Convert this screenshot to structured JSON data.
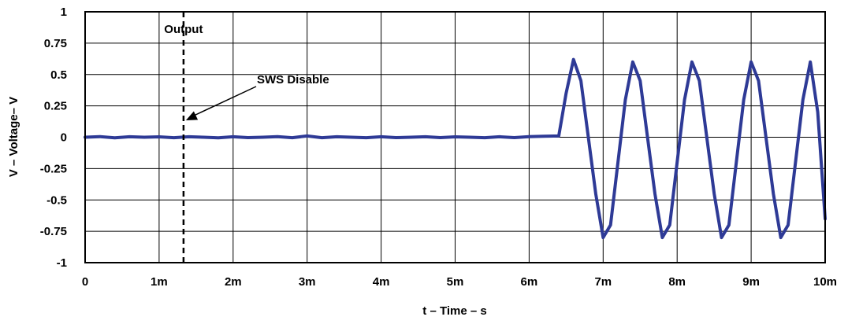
{
  "chart_data": {
    "type": "line",
    "title": "",
    "xlabel": "t – Time – s",
    "ylabel": "V – Voltage– V",
    "xlim": [
      0,
      0.01
    ],
    "ylim": [
      -1,
      1
    ],
    "grid": true,
    "x_ticks": [
      {
        "value": 0,
        "label": "0"
      },
      {
        "value": 0.001,
        "label": "1m"
      },
      {
        "value": 0.002,
        "label": "2m"
      },
      {
        "value": 0.003,
        "label": "3m"
      },
      {
        "value": 0.004,
        "label": "4m"
      },
      {
        "value": 0.005,
        "label": "5m"
      },
      {
        "value": 0.006,
        "label": "6m"
      },
      {
        "value": 0.007,
        "label": "7m"
      },
      {
        "value": 0.008,
        "label": "8m"
      },
      {
        "value": 0.009,
        "label": "9m"
      },
      {
        "value": 0.01,
        "label": "10m"
      }
    ],
    "y_ticks": [
      {
        "value": 1,
        "label": "1"
      },
      {
        "value": 0.75,
        "label": "0.75"
      },
      {
        "value": 0.5,
        "label": "0.5"
      },
      {
        "value": 0.25,
        "label": "0.25"
      },
      {
        "value": 0,
        "label": "0"
      },
      {
        "value": -0.25,
        "label": "-0.25"
      },
      {
        "value": -0.5,
        "label": "-0.5"
      },
      {
        "value": -0.75,
        "label": "-0.75"
      },
      {
        "value": -1,
        "label": "-1"
      }
    ],
    "series": [
      {
        "color": "#2e3a96",
        "x": [
          0,
          0.0002,
          0.0004,
          0.0006,
          0.0008,
          0.001,
          0.0012,
          0.0014,
          0.0016,
          0.0018,
          0.002,
          0.0022,
          0.0024,
          0.0026,
          0.0028,
          0.003,
          0.0032,
          0.0034,
          0.0036,
          0.0038,
          0.004,
          0.0042,
          0.0044,
          0.0046,
          0.0048,
          0.005,
          0.0052,
          0.0054,
          0.0056,
          0.0058,
          0.006,
          0.0062,
          0.0064,
          0.0065,
          0.0066,
          0.0067,
          0.0068,
          0.0069,
          0.007,
          0.0071,
          0.0072,
          0.0073,
          0.0074,
          0.0075,
          0.0076,
          0.0077,
          0.0078,
          0.0079,
          0.008,
          0.0081,
          0.0082,
          0.0083,
          0.0084,
          0.0085,
          0.0086,
          0.0087,
          0.0088,
          0.0089,
          0.009,
          0.0091,
          0.0092,
          0.0093,
          0.0094,
          0.0095,
          0.0096,
          0.0097,
          0.0098,
          0.0099,
          0.01
        ],
        "y": [
          0.0,
          0.005,
          -0.005,
          0.004,
          0.0,
          0.003,
          -0.004,
          0.004,
          0.0,
          -0.005,
          0.004,
          -0.003,
          0.0,
          0.005,
          -0.004,
          0.01,
          -0.004,
          0.004,
          0.0,
          -0.004,
          0.004,
          -0.003,
          0.0,
          0.004,
          -0.003,
          0.003,
          0.0,
          -0.004,
          0.004,
          -0.003,
          0.005,
          0.008,
          0.01,
          0.35,
          0.62,
          0.45,
          0.0,
          -0.45,
          -0.8,
          -0.7,
          -0.2,
          0.3,
          0.6,
          0.45,
          0.0,
          -0.45,
          -0.8,
          -0.7,
          -0.2,
          0.3,
          0.6,
          0.45,
          0.0,
          -0.45,
          -0.8,
          -0.7,
          -0.2,
          0.3,
          0.6,
          0.45,
          0.0,
          -0.45,
          -0.8,
          -0.7,
          -0.2,
          0.3,
          0.6,
          0.2,
          -0.65
        ]
      }
    ],
    "marker_line": {
      "x": 0.00133,
      "style": "dashed",
      "label": "Output"
    },
    "annotation": {
      "text": "SWS Disable",
      "points_to": {
        "x": 0.00133,
        "y": 0.25
      }
    }
  }
}
